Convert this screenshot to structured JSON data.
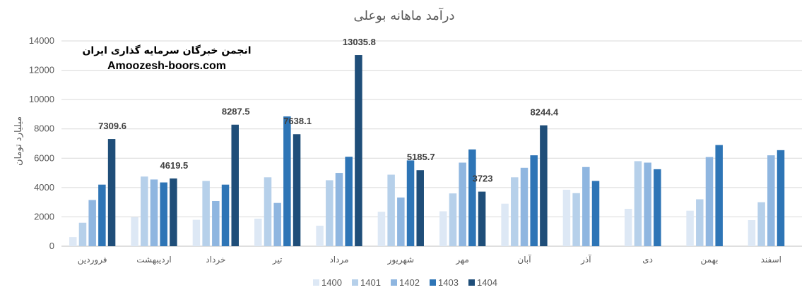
{
  "chart_data": {
    "type": "bar",
    "title": "درآمد ماهانه بوعلی",
    "ylabel": "میلیارد تومان",
    "xlabel": "",
    "ylim": [
      0,
      14000
    ],
    "yticks": [
      0,
      2000,
      4000,
      6000,
      8000,
      10000,
      12000,
      14000
    ],
    "grid": true,
    "legend_position": "bottom",
    "categories": [
      "فروردین",
      "اردیبهشت",
      "خرداد",
      "تیر",
      "مرداد",
      "شهریور",
      "مهر",
      "آبان",
      "آذر",
      "دی",
      "بهمن",
      "اسفند"
    ],
    "series": [
      {
        "name": "1400",
        "color": "#dde8f5",
        "values": [
          620,
          1980,
          1800,
          1880,
          1400,
          2350,
          2380,
          2900,
          3850,
          2550,
          2420,
          1780
        ]
      },
      {
        "name": "1401",
        "color": "#b6d0ea",
        "values": [
          1600,
          4750,
          4450,
          4700,
          4500,
          4880,
          3600,
          4700,
          3620,
          5800,
          3200,
          3000
        ]
      },
      {
        "name": "1402",
        "color": "#8fb6e0",
        "values": [
          3150,
          4550,
          3080,
          2950,
          5000,
          3320,
          5700,
          5350,
          5400,
          5700,
          6080,
          6200
        ]
      },
      {
        "name": "1403",
        "color": "#2e75b6",
        "values": [
          4200,
          4350,
          4200,
          8850,
          6100,
          5850,
          6600,
          6200,
          4450,
          5250,
          6900,
          6550
        ]
      },
      {
        "name": "1404",
        "color": "#1f4e79",
        "values": [
          7309.6,
          4619.5,
          8287.5,
          7638.1,
          13035.8,
          5185.7,
          3723,
          8244.4,
          null,
          null,
          null,
          null
        ]
      }
    ],
    "data_labels": [
      "7309.6",
      "4619.5",
      "8287.5",
      "7638.1",
      "13035.8",
      "5185.7",
      "3723",
      "8244.4"
    ]
  },
  "watermark": {
    "line1": "انجمن خبرگان سرمایه گذاری ایران",
    "line2": "Amoozesh-boors.com"
  },
  "colors": {
    "grid": "#d9d9d9",
    "axis": "#bfbfbf",
    "text": "#595959"
  }
}
